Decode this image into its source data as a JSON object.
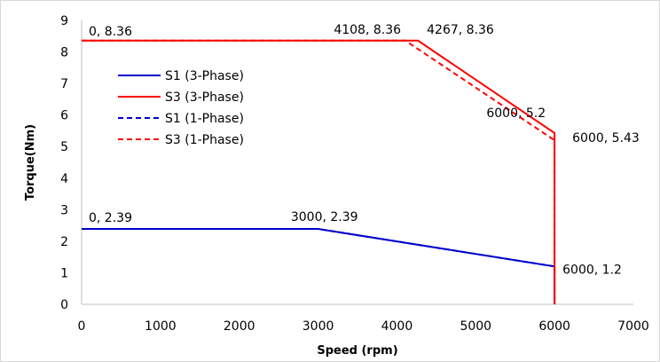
{
  "chart_data": {
    "type": "line",
    "title": "",
    "xlabel": "Speed (rpm)",
    "ylabel": "Torque(Nm)",
    "xlim": [
      0,
      7000
    ],
    "ylim": [
      0,
      9
    ],
    "x_ticks": [
      0,
      1000,
      2000,
      3000,
      4000,
      5000,
      6000,
      7000
    ],
    "y_ticks": [
      0,
      1,
      2,
      3,
      4,
      5,
      6,
      7,
      8,
      9
    ],
    "grid": false,
    "legend_position": "upper-left",
    "series": [
      {
        "name": "S1 (3-Phase)",
        "color": "#0000cc",
        "dash": "solid",
        "points": [
          [
            0,
            2.39
          ],
          [
            3000,
            2.39
          ],
          [
            6000,
            1.2
          ],
          [
            6000,
            0
          ]
        ]
      },
      {
        "name": "S3 (3-Phase)",
        "color": "#ff0000",
        "dash": "solid",
        "points": [
          [
            0,
            8.36
          ],
          [
            4267,
            8.36
          ],
          [
            6000,
            5.43
          ],
          [
            6000,
            0
          ]
        ]
      },
      {
        "name": "S1 (1-Phase)",
        "color": "#0000cc",
        "dash": "dashed",
        "points": [
          [
            0,
            2.39
          ],
          [
            3000,
            2.39
          ],
          [
            6000,
            1.2
          ],
          [
            6000,
            0
          ]
        ]
      },
      {
        "name": "S3 (1-Phase)",
        "color": "#ff0000",
        "dash": "dashed",
        "points": [
          [
            0,
            8.36
          ],
          [
            4108,
            8.36
          ],
          [
            6000,
            5.2
          ],
          [
            6000,
            0
          ]
        ]
      }
    ],
    "annotations": [
      {
        "text": "0, 8.36",
        "x": 0,
        "y": 8.36
      },
      {
        "text": "4108, 8.36",
        "x": 4108,
        "y": 8.36
      },
      {
        "text": "4267, 8.36",
        "x": 4267,
        "y": 8.36
      },
      {
        "text": "6000, 5.2",
        "x": 6000,
        "y": 5.2
      },
      {
        "text": "6000, 5.43",
        "x": 6000,
        "y": 5.43
      },
      {
        "text": "0, 2.39",
        "x": 0,
        "y": 2.39
      },
      {
        "text": "3000, 2.39",
        "x": 3000,
        "y": 2.39
      },
      {
        "text": "6000, 1.2",
        "x": 6000,
        "y": 1.2
      }
    ]
  }
}
